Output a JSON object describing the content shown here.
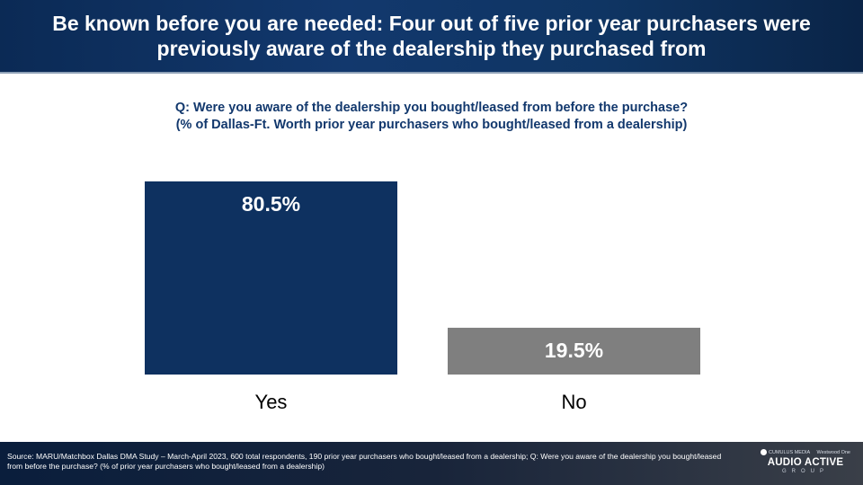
{
  "header": {
    "title": "Be known before you are needed: Four out of five prior year purchasers were previously aware of the dealership they purchased from"
  },
  "question": {
    "line1": "Q: Were you aware of the dealership you bought/leased from before the purchase?",
    "line2": "(% of Dallas-Ft. Worth prior year purchasers who bought/leased from a dealership)"
  },
  "chart_data": {
    "type": "bar",
    "categories": [
      "Yes",
      "No"
    ],
    "values": [
      80.5,
      19.5
    ],
    "data_labels": [
      "80.5%",
      "19.5%"
    ],
    "colors": [
      "#0e3160",
      "#7f7f7f"
    ],
    "label_color": "#ffffff",
    "ylim": [
      0,
      80.5
    ],
    "grid": false,
    "title": "",
    "xlabel": "",
    "ylabel": ""
  },
  "footer": {
    "source": "Source: MARU/Matchbox Dallas DMA Study – March-April 2023, 600 total respondents, 190 prior year purchasers who bought/leased from a dealership; Q: Were you aware of the dealership you bought/leased from before the purchase? (% of prior year purchasers who bought/leased from a dealership)",
    "brand_top_left": "CUMULUS MEDIA",
    "brand_top_right": "Westwood One",
    "brand_main": "AUDIO ACTIVE",
    "brand_sub": "GROUP"
  }
}
